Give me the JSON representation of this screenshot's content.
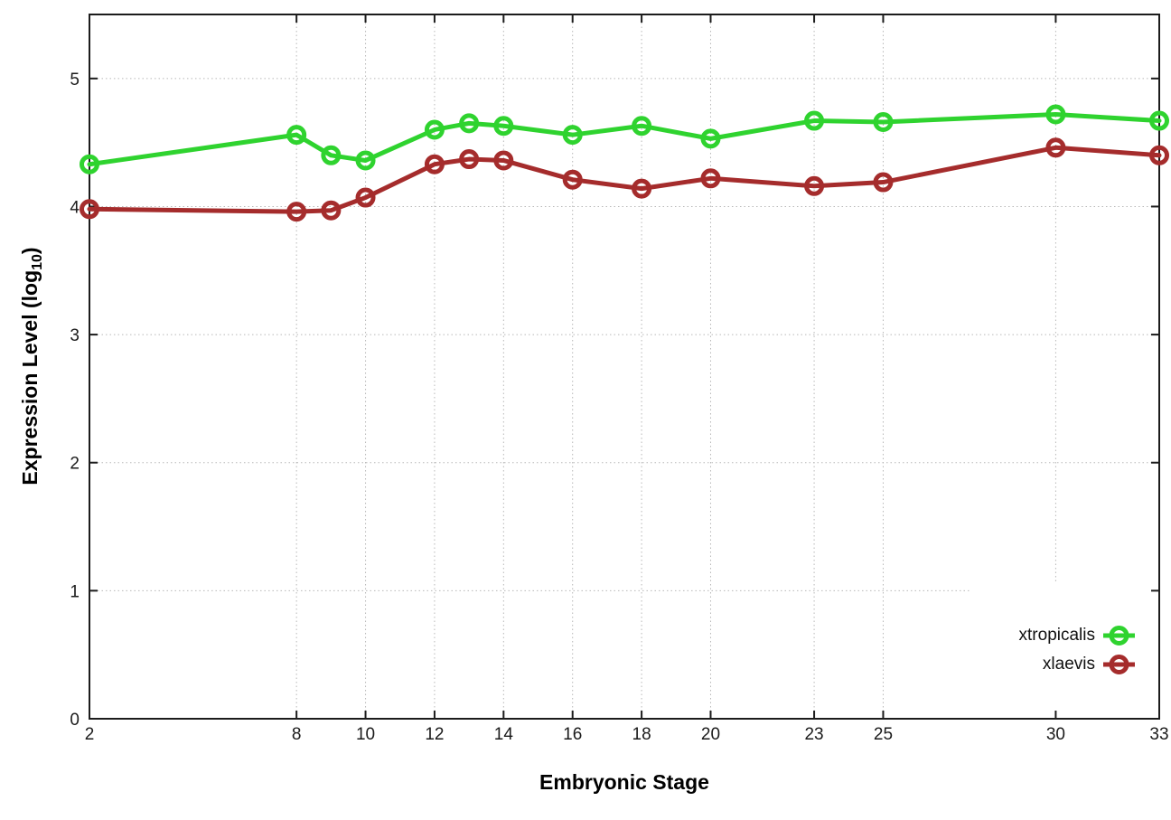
{
  "labels": {
    "xlabel": "Embryonic Stage",
    "ylabel_prefix": "Expression Level (log",
    "ylabel_sub": "10",
    "ylabel_suffix": ")"
  },
  "chart_data": {
    "type": "line",
    "title": "",
    "xlabel": "Embryonic Stage",
    "ylabel": "Expression Level (log10)",
    "xlim": [
      2,
      33
    ],
    "ylim": [
      0,
      5.5
    ],
    "x_ticks": [
      2,
      8,
      10,
      12,
      14,
      16,
      18,
      20,
      23,
      25,
      30,
      33
    ],
    "y_ticks": [
      0,
      1,
      2,
      3,
      4,
      5
    ],
    "grid": true,
    "legend_position": "inside-bottom-right",
    "x": [
      2,
      8,
      9,
      10,
      12,
      13,
      14,
      16,
      18,
      20,
      23,
      25,
      30,
      33
    ],
    "series": [
      {
        "name": "xtropicalis",
        "color": "#2fd32f",
        "marker": "open-circle",
        "values": [
          4.33,
          4.56,
          4.4,
          4.36,
          4.6,
          4.65,
          4.63,
          4.56,
          4.63,
          4.53,
          4.67,
          4.66,
          4.72,
          4.67
        ]
      },
      {
        "name": "xlaevis",
        "color": "#a52c2c",
        "marker": "open-circle",
        "values": [
          3.98,
          3.96,
          3.97,
          4.07,
          4.33,
          4.37,
          4.36,
          4.21,
          4.14,
          4.22,
          4.16,
          4.19,
          4.46,
          4.4
        ]
      }
    ],
    "colors": {
      "background": "#ffffff",
      "grid": "#b8b8b8",
      "axis": "#1c1c1c",
      "tick_text": "#1b1b1b"
    }
  }
}
